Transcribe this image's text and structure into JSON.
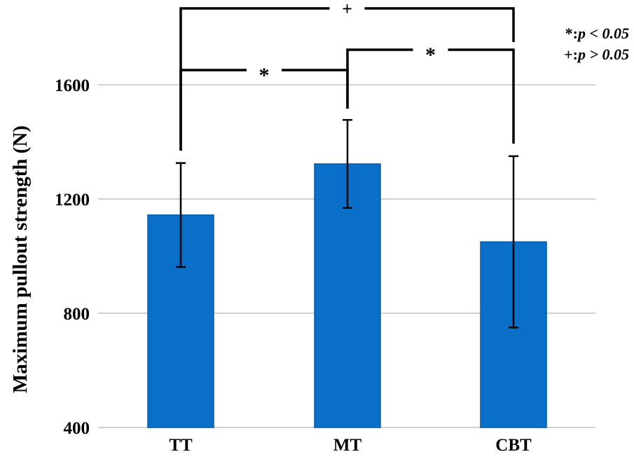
{
  "chart_data": {
    "type": "bar",
    "title": "",
    "xlabel": "",
    "ylabel": "Maximum pullout strength (N)",
    "ylim": [
      400,
      1600
    ],
    "yticks": [
      400,
      800,
      1200,
      1600
    ],
    "grid": true,
    "categories": [
      "TT",
      "MT",
      "CBT"
    ],
    "values": [
      1144,
      1323,
      1050
    ],
    "error": [
      182,
      154,
      300
    ],
    "bar_color": "#0a6fc8",
    "significance": [
      {
        "from": "TT",
        "to": "CBT",
        "label": "+"
      },
      {
        "from": "TT",
        "to": "MT",
        "label": "*"
      },
      {
        "from": "MT",
        "to": "CBT",
        "label": "*"
      }
    ],
    "legend": [
      {
        "symbol": "*:",
        "text": "p < 0.05"
      },
      {
        "symbol": "+:",
        "text": "p > 0.05"
      }
    ],
    "legend_position": "top-right"
  }
}
